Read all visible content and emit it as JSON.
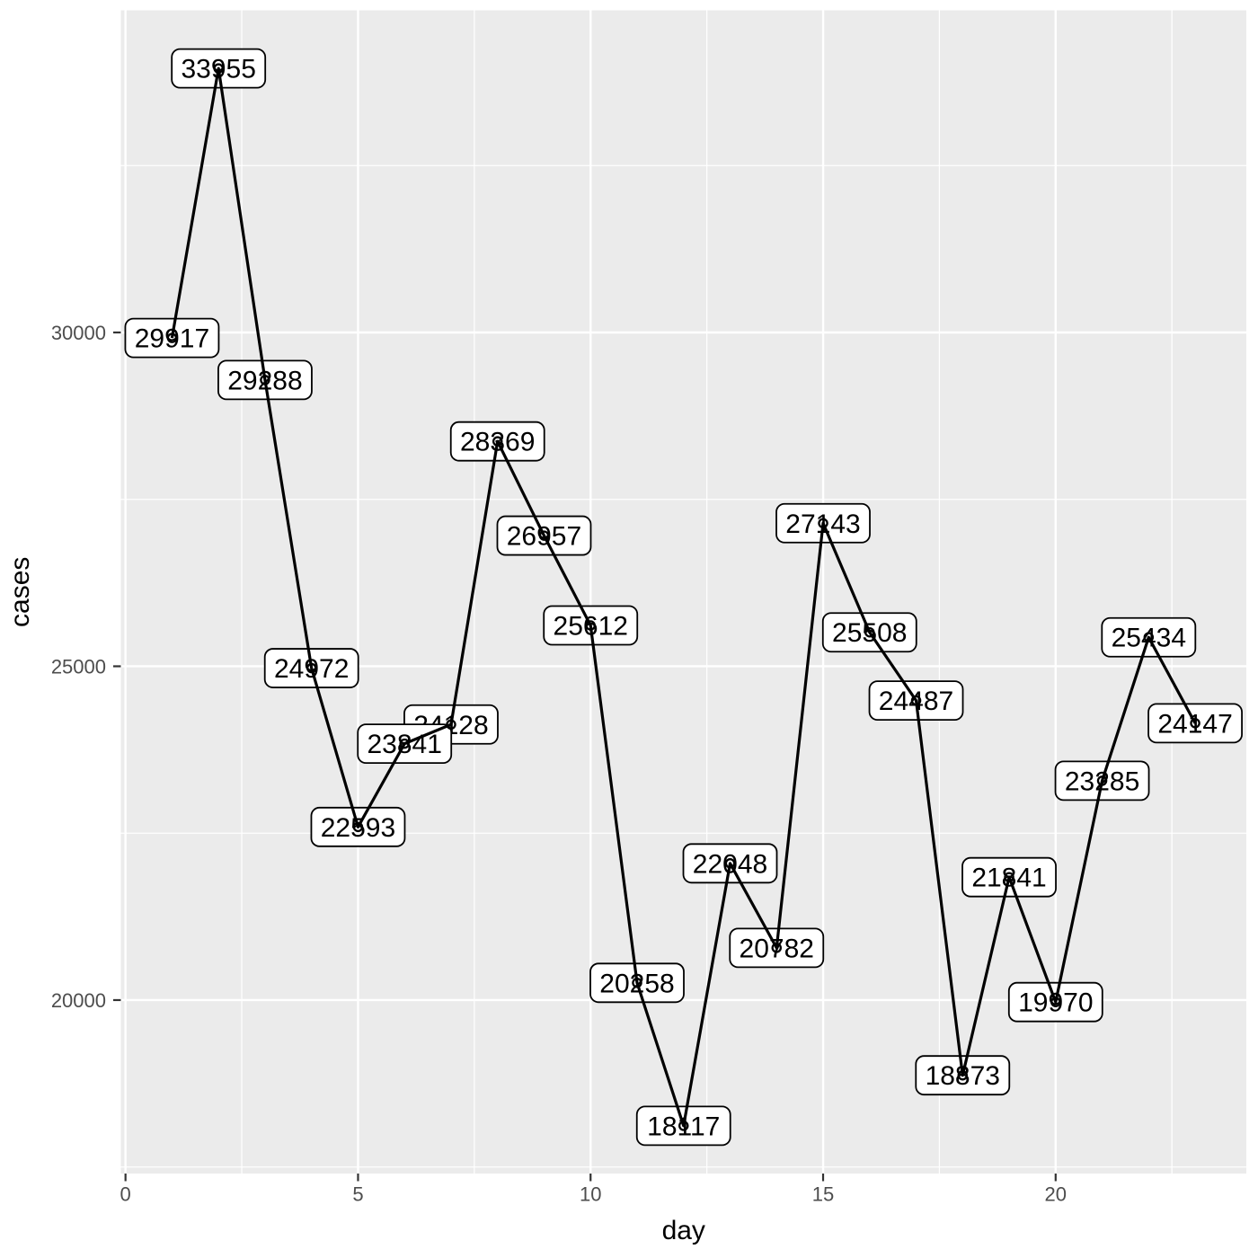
{
  "chart_data": {
    "type": "line",
    "title": "",
    "xlabel": "day",
    "ylabel": "cases",
    "x": [
      1,
      2,
      3,
      4,
      5,
      6,
      7,
      8,
      9,
      10,
      11,
      12,
      13,
      14,
      15,
      16,
      17,
      18,
      19,
      20,
      21,
      22,
      23
    ],
    "y": [
      29917,
      33955,
      29288,
      24972,
      22593,
      23841,
      24128,
      28369,
      26957,
      25612,
      20258,
      18117,
      22048,
      20782,
      27143,
      25508,
      24487,
      18873,
      21841,
      19970,
      23285,
      25434,
      24147
    ],
    "point_labels": [
      "29917",
      "33955",
      "29288",
      "24972",
      "22593",
      "23841",
      "24128",
      "28369",
      "26957",
      "25612",
      "20258",
      "18117",
      "22048",
      "20782",
      "27143",
      "25508",
      "24487",
      "18873",
      "21841",
      "19970",
      "23285",
      "25434",
      "24147"
    ],
    "x_ticks": [
      0,
      5,
      10,
      15,
      20
    ],
    "x_tick_labels": [
      "0",
      "5",
      "10",
      "15",
      "20"
    ],
    "x_minor_ticks": [
      2.5,
      7.5,
      12.5,
      17.5,
      22.5
    ],
    "y_ticks": [
      20000,
      25000,
      30000
    ],
    "y_tick_labels": [
      "20000",
      "25000",
      "30000"
    ],
    "y_minor_ticks": [
      17500,
      22500,
      27500,
      32500
    ],
    "xlim": [
      -0.1,
      24.1
    ],
    "ylim": [
      17402,
      34825
    ],
    "grid": "major+minor",
    "legend": "none",
    "marker": "open-circle",
    "style": {
      "panel_bg": "#EBEBEB",
      "grid_color": "#FFFFFF",
      "line_color": "#000000",
      "label_fill": "#FFFFFF",
      "label_border": "#000000",
      "tick_label_color": "#4D4D4D",
      "tick_mark_color": "#333333",
      "axis_title_color": "#000000",
      "background": "#FFFFFF"
    }
  }
}
